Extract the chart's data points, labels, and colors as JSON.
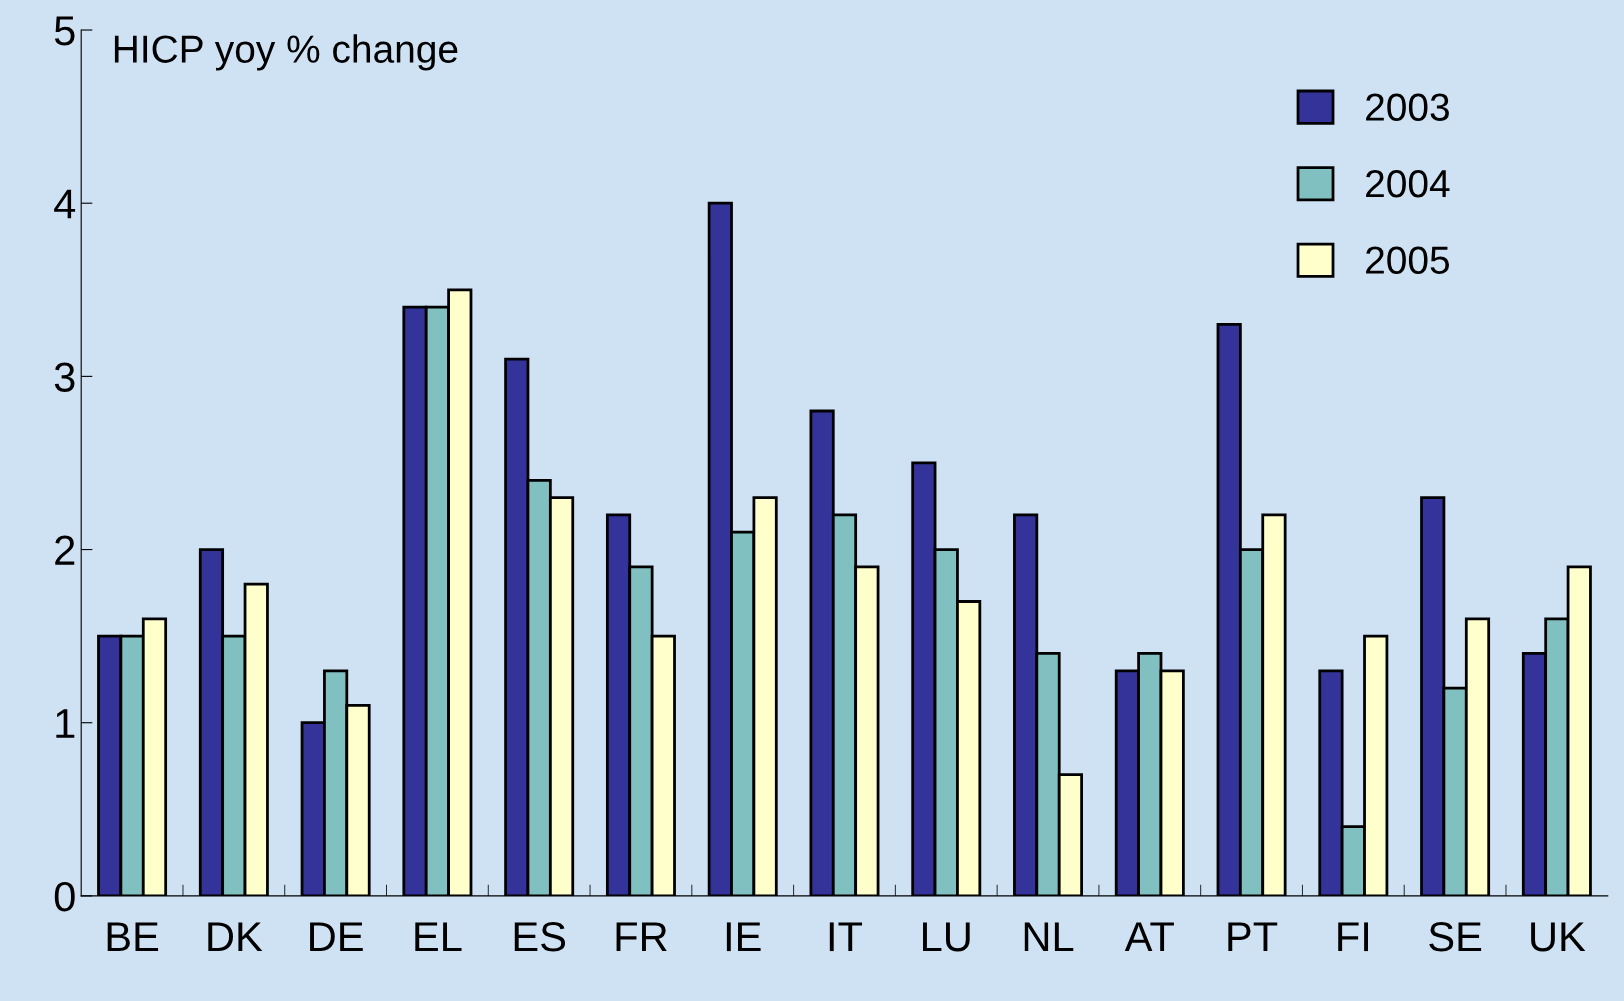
{
  "chart_data": {
    "type": "bar",
    "ylabel": "HICP yoy % change",
    "categories": [
      "BE",
      "DK",
      "DE",
      "EL",
      "ES",
      "FR",
      "IE",
      "IT",
      "LU",
      "NL",
      "AT",
      "PT",
      "FI",
      "SE",
      "UK"
    ],
    "series": [
      {
        "name": "2003",
        "color": "#333399",
        "values": [
          1.5,
          2.0,
          1.0,
          3.4,
          3.1,
          2.2,
          4.0,
          2.8,
          2.5,
          2.2,
          1.3,
          3.3,
          1.3,
          2.3,
          1.4
        ]
      },
      {
        "name": "2004",
        "color": "#80c0c0",
        "values": [
          1.5,
          1.5,
          1.3,
          3.4,
          2.4,
          1.9,
          2.1,
          2.2,
          2.0,
          1.4,
          1.4,
          2.0,
          0.4,
          1.2,
          1.6
        ]
      },
      {
        "name": "2005",
        "color": "#ffffcc",
        "values": [
          1.6,
          1.8,
          1.1,
          3.5,
          2.3,
          1.5,
          2.3,
          1.9,
          1.7,
          0.7,
          1.3,
          2.2,
          1.5,
          1.6,
          1.9
        ]
      }
    ],
    "ylim": [
      0,
      5
    ],
    "yticks": [
      0,
      1,
      2,
      3,
      4,
      5
    ],
    "grid": false,
    "legend": "top right"
  }
}
